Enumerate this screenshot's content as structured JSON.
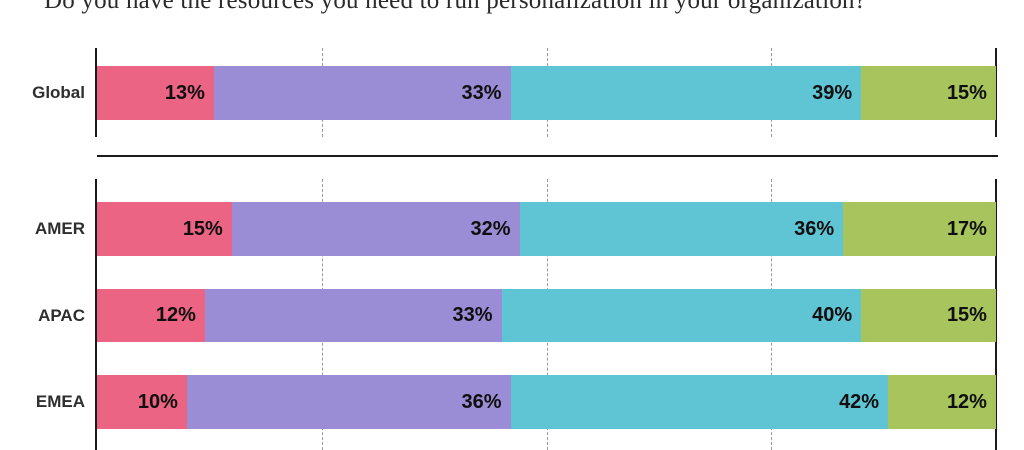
{
  "title": "Do you have the resources you need to run personalization in your organization?",
  "colors": {
    "segment_pink": "#EC6483",
    "segment_purple": "#9A8DD5",
    "segment_teal": "#5FC4D4",
    "segment_green": "#A7C55C",
    "axis": "#1a1a1a",
    "gridline": "#9a9a9a",
    "row_label": "#2e2e2e",
    "value_label": "#0f0f0f",
    "background": "#ffffff"
  },
  "chart_data": {
    "type": "bar",
    "stacked": true,
    "orientation": "horizontal",
    "title": "Do you have the resources you need to run personalization in your organization?",
    "xlim": [
      0,
      100
    ],
    "value_suffix": "%",
    "gridlines_percent": [
      25,
      50,
      75
    ],
    "legend": null,
    "segment_names": [
      "segment-1",
      "segment-2",
      "segment-3",
      "segment-4"
    ],
    "segment_colors": [
      "#EC6483",
      "#9A8DD5",
      "#5FC4D4",
      "#A7C55C"
    ],
    "groups": [
      {
        "name": "global",
        "rows": [
          {
            "label": "Global",
            "values": [
              13,
              33,
              39,
              15
            ]
          }
        ]
      },
      {
        "name": "regions",
        "rows": [
          {
            "label": "AMER",
            "values": [
              15,
              32,
              36,
              17
            ]
          },
          {
            "label": "APAC",
            "values": [
              12,
              33,
              40,
              15
            ]
          },
          {
            "label": "EMEA",
            "values": [
              10,
              36,
              42,
              12
            ]
          }
        ]
      }
    ]
  }
}
